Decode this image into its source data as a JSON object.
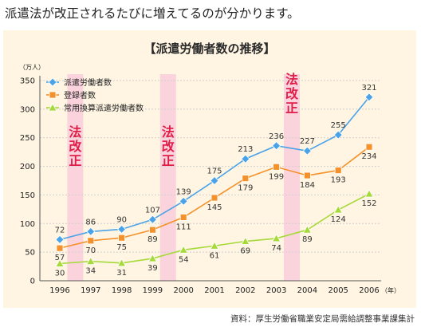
{
  "caption": "派遣法が改正されるたびに増えてるのが分かります。",
  "source": "資料：厚生労働省職業安定局需給調整事業課集計",
  "chart_data": {
    "type": "line",
    "title": "【派遣労働者数の推移】",
    "ylabel": "（万人）",
    "xunit": "（年）",
    "ylim": [
      0,
      350
    ],
    "yticks": [
      0,
      50,
      100,
      150,
      200,
      250,
      300,
      350
    ],
    "x": [
      "1996",
      "1997",
      "1998",
      "1999",
      "2000",
      "2001",
      "2002",
      "2003",
      "2004",
      "2005",
      "2006"
    ],
    "grid": true,
    "legend_position": "top-left",
    "series": [
      {
        "name": "派遣労働者数",
        "color": "#4aa3e8",
        "marker": "diamond",
        "values": [
          72,
          86,
          90,
          107,
          139,
          175,
          213,
          236,
          227,
          255,
          321
        ]
      },
      {
        "name": "登録者数",
        "color": "#f5912a",
        "marker": "square",
        "values": [
          57,
          70,
          75,
          89,
          111,
          145,
          179,
          199,
          184,
          193,
          234
        ]
      },
      {
        "name": "常用換算派遣労働者数",
        "color": "#a6d93a",
        "marker": "triangle",
        "values": [
          30,
          34,
          31,
          39,
          54,
          61,
          69,
          74,
          89,
          124,
          152
        ]
      }
    ],
    "annotations": [
      {
        "text": "法改正",
        "band": [
          "1996",
          "1996"
        ]
      },
      {
        "text": "法改正",
        "band": [
          "1999",
          "1999"
        ]
      },
      {
        "text": "法改正",
        "band": [
          "2003",
          "2003"
        ]
      }
    ]
  }
}
